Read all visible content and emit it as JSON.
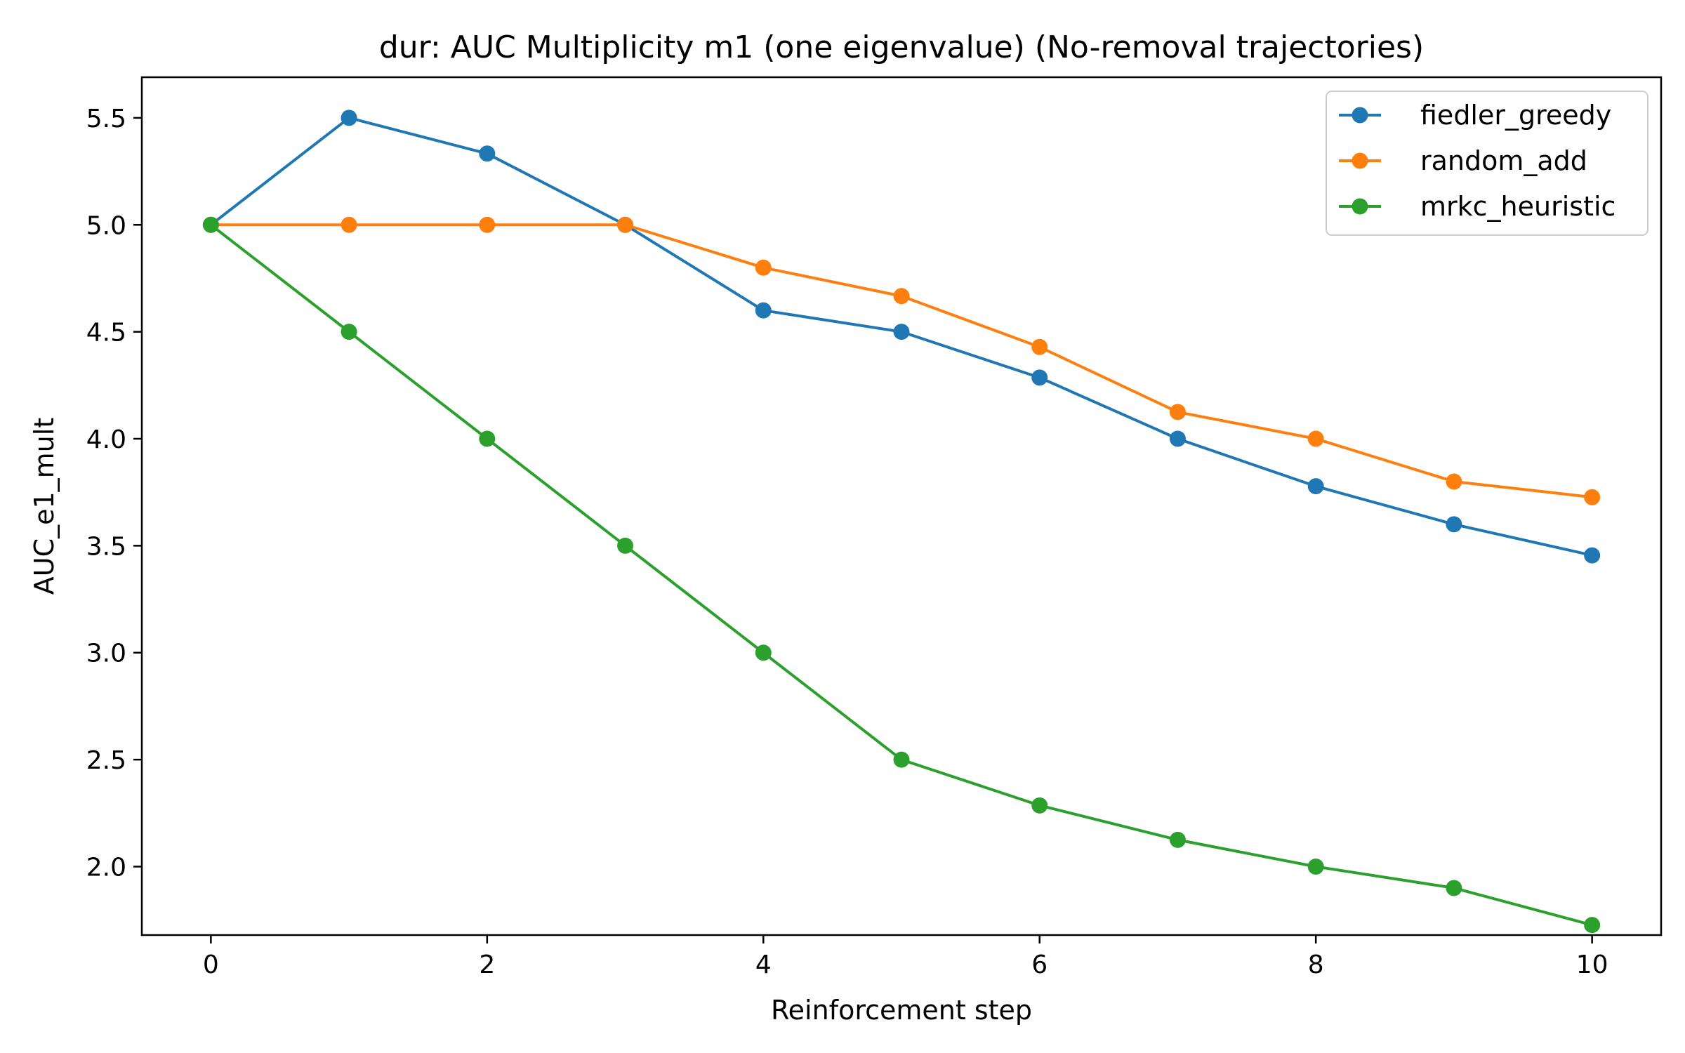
{
  "chart_data": {
    "type": "line",
    "title": "dur: AUC Multiplicity m1 (one eigenvalue) (No-removal trajectories)",
    "xlabel": "Reinforcement step",
    "ylabel": "AUC_e1_mult",
    "xlim": [
      -0.5,
      10.5
    ],
    "ylim": [
      1.68,
      5.69
    ],
    "xticks": [
      0,
      2,
      4,
      6,
      8,
      10
    ],
    "yticks": [
      2.0,
      2.5,
      3.0,
      3.5,
      4.0,
      4.5,
      5.0,
      5.5
    ],
    "grid": false,
    "legend_position": "top-right",
    "x": [
      0,
      1,
      2,
      3,
      4,
      5,
      6,
      7,
      8,
      9,
      10
    ],
    "series": [
      {
        "name": "fiedler_greedy",
        "color": "#1f77b4",
        "values": [
          5.0,
          5.5,
          5.333,
          5.0,
          4.6,
          4.5,
          4.286,
          4.0,
          3.778,
          3.6,
          3.455
        ]
      },
      {
        "name": "random_add",
        "color": "#ff7f0e",
        "values": [
          5.0,
          5.0,
          5.0,
          5.0,
          4.8,
          4.667,
          4.429,
          4.125,
          4.0,
          3.8,
          3.727
        ]
      },
      {
        "name": "mrkc_heuristic",
        "color": "#2ca02c",
        "values": [
          5.0,
          4.5,
          4.0,
          3.5,
          3.0,
          2.5,
          2.286,
          2.125,
          2.0,
          1.9,
          1.727
        ]
      }
    ]
  }
}
